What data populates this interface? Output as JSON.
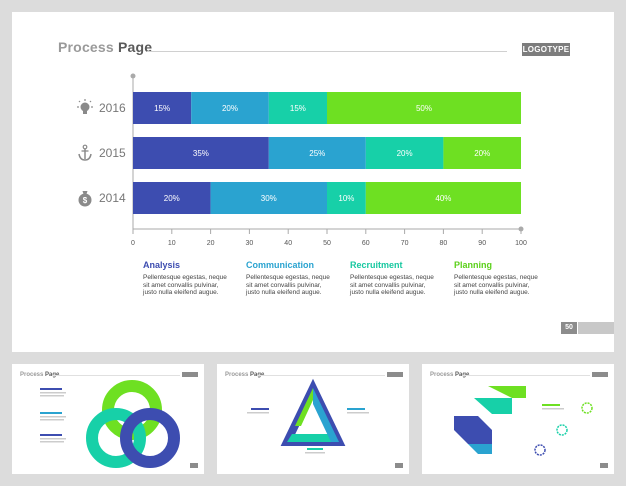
{
  "main": {
    "title_part1": "Process",
    "title_part2": "Page",
    "logo": "LOGOTYPE",
    "page_number": "50"
  },
  "chart_data": {
    "type": "bar",
    "orientation": "horizontal-stacked",
    "categories": [
      "2016",
      "2015",
      "2014"
    ],
    "category_icons": [
      "lightbulb-icon",
      "anchor-icon",
      "money-bag-icon"
    ],
    "series": [
      {
        "name": "Analysis",
        "color": "#3d4db0",
        "values": [
          15,
          35,
          20
        ]
      },
      {
        "name": "Communication",
        "color": "#2aa3d0",
        "values": [
          20,
          25,
          30
        ]
      },
      {
        "name": "Recruitment",
        "color": "#17d0a8",
        "values": [
          15,
          20,
          10
        ]
      },
      {
        "name": "Planning",
        "color": "#6ee022",
        "values": [
          50,
          20,
          40
        ]
      }
    ],
    "labels": [
      [
        "15%",
        "20%",
        "15%",
        "50%"
      ],
      [
        "35%",
        "25%",
        "20%",
        "20%"
      ],
      [
        "20%",
        "30%",
        "10%",
        "40%"
      ]
    ],
    "xlim": [
      0,
      100
    ],
    "xticks": [
      "0",
      "10",
      "20",
      "30",
      "40",
      "50",
      "60",
      "70",
      "80",
      "90",
      "100"
    ]
  },
  "categories_text": [
    {
      "title": "Analysis",
      "color": "#3d4db0",
      "desc": "Pellentesque egestas, neque sit amet convallis pulvinar, justo nulla eleifend augue."
    },
    {
      "title": "Communication",
      "color": "#2aa3d0",
      "desc": "Pellentesque egestas, neque sit amet convallis pulvinar, justo nulla eleifend augue."
    },
    {
      "title": "Recruitment",
      "color": "#17c8a0",
      "desc": "Pellentesque egestas, neque sit amet convallis pulvinar, justo nulla eleifend augue."
    },
    {
      "title": "Planning",
      "color": "#5bd01a",
      "desc": "Pellentesque egestas, neque sit amet convallis pulvinar, justo nulla eleifend augue."
    }
  ],
  "thumbnails": [
    {
      "title_part1": "Process",
      "title_part2": "Page"
    },
    {
      "title_part1": "Process",
      "title_part2": "Page"
    },
    {
      "title_part1": "Process",
      "title_part2": "Page"
    }
  ]
}
